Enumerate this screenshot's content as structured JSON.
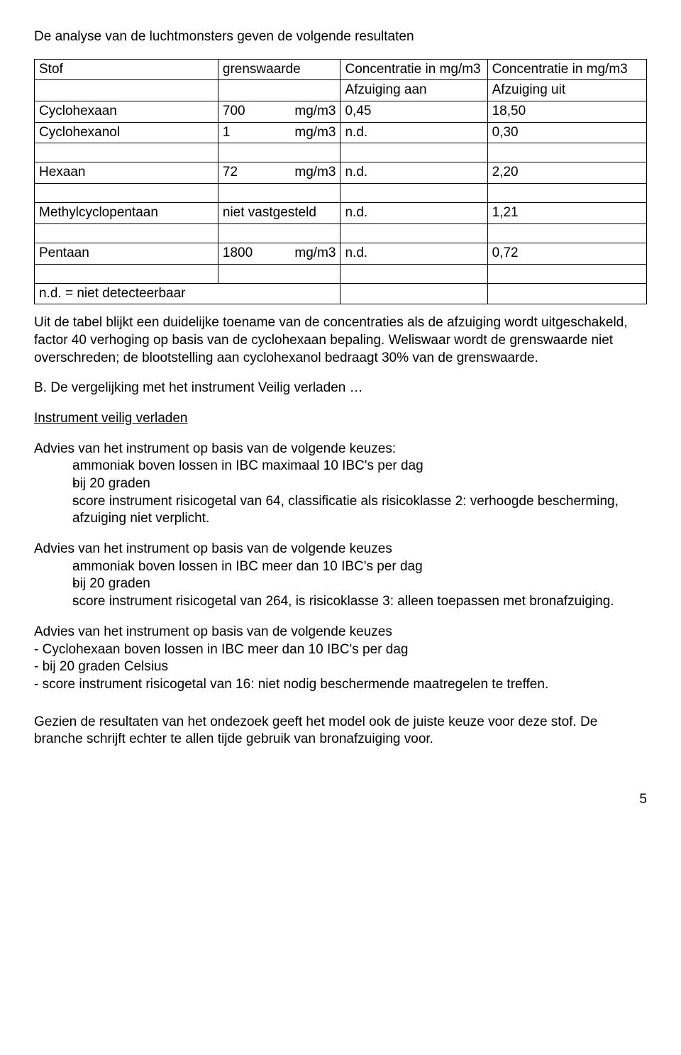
{
  "intro": "De analyse van de luchtmonsters geven de volgende resultaten",
  "table": {
    "header": {
      "substance": "Stof",
      "limit": "grenswaarde",
      "conc_in": "Concentratie in mg/m3",
      "conc_in2": "Concentratie in mg/m3",
      "suction_on": "Afzuiging aan",
      "suction_off": "Afzuiging uit"
    },
    "rows": [
      {
        "name": "Cyclohexaan",
        "limit_val": "700",
        "limit_unit": "mg/m3",
        "c1": "0,45",
        "c2": "18,50"
      },
      {
        "name": "Cyclohexanol",
        "limit_val": "1",
        "limit_unit": "mg/m3",
        "c1": "n.d.",
        "c2": "0,30"
      },
      {
        "name": "Hexaan",
        "limit_val": "72",
        "limit_unit": "mg/m3",
        "c1": "n.d.",
        "c2": "2,20",
        "gap_before": true
      },
      {
        "name": "Methylcyclopentaan",
        "limit_text": "niet vastgesteld",
        "c1": "n.d.",
        "c2": "1,21",
        "gap_before": true
      },
      {
        "name": "Pentaan",
        "limit_val": "1800",
        "limit_unit": "mg/m3",
        "c1": "n.d.",
        "c2": "0,72",
        "gap_before": true
      }
    ],
    "footnote": "n.d. = niet detecteerbaar"
  },
  "para_after_table": "Uit de tabel blijkt een duidelijke toename van de concentraties als de afzuiging wordt uitgeschakeld, factor 40 verhoging op basis van de cyclohexaan bepaling. Weliswaar wordt de grenswaarde niet overschreden; de blootstelling aan cyclohexanol bedraagt 30% van de grenswaarde.",
  "section_b_title": "B. De vergelijking met het instrument Veilig verladen …",
  "instrument_heading": "Instrument veilig verladen",
  "advice1_intro": "Advies van het instrument op basis van de volgende keuzes:",
  "advice1_bullets": [
    "ammoniak boven lossen in IBC maximaal 10 IBC's per dag",
    "bij 20 graden",
    "score instrument risicogetal van 64, classificatie als risicoklasse 2: verhoogde bescherming, afzuiging niet verplicht."
  ],
  "advice2_intro": "Advies van het instrument op basis van de volgende keuzes",
  "advice2_bullets": [
    "ammoniak boven lossen in IBC meer dan 10 IBC's per dag",
    "bij 20 graden",
    "score instrument risicogetal van 264, is risicoklasse 3: alleen toepassen met bronafzuiging."
  ],
  "advice3_intro": "Advies van het instrument op basis van de volgende keuzes",
  "advice3_lines": [
    "- Cyclohexaan boven lossen in IBC meer dan 10 IBC's per dag",
    "- bij 20 graden Celsius",
    "- score instrument risicogetal van 16: niet nodig beschermende maatregelen te treffen."
  ],
  "conclusion": "Gezien de resultaten van het ondezoek geeft het model ook de juiste keuze voor deze stof. De branche schrijft echter te allen tijde gebruik van bronafzuiging voor.",
  "page_number": "5"
}
